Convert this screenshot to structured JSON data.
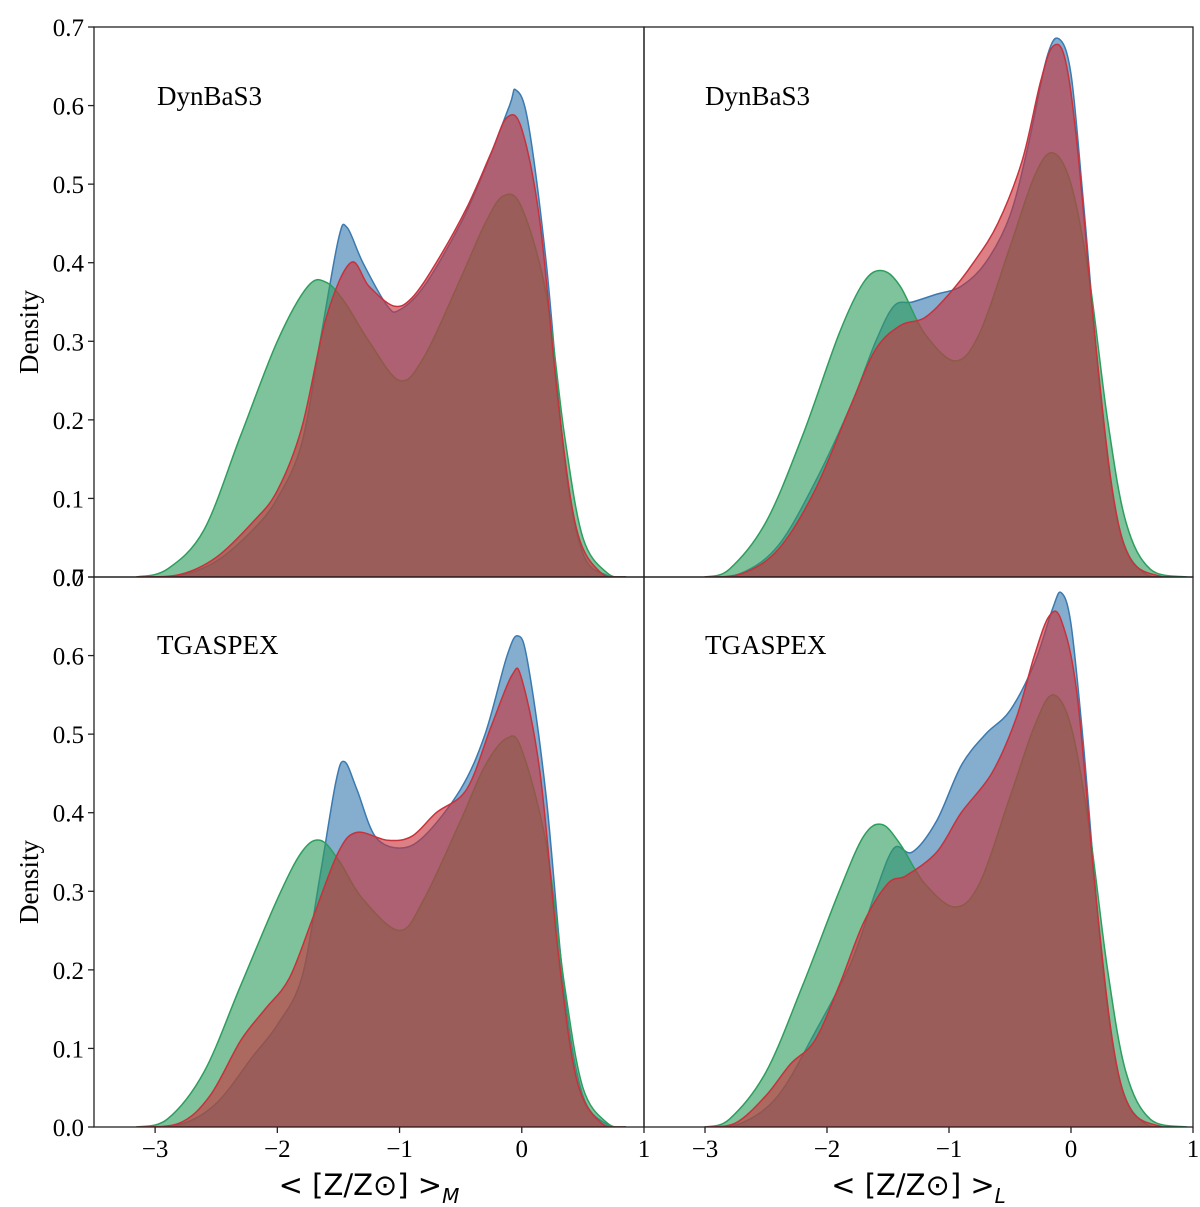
{
  "chart_data": [
    {
      "type": "area",
      "label": "DynBaS3",
      "xlabel": "",
      "ylabel": "Density",
      "xlim": [
        -3.5,
        1
      ],
      "ylim": [
        0,
        0.7
      ],
      "yticks": [
        "0.0",
        "0.1",
        "0.2",
        "0.3",
        "0.4",
        "0.5",
        "0.6",
        "0.7"
      ],
      "xticks": [],
      "series": [
        {
          "color": "#3a7ab0",
          "points": [
            [
              -3.15,
              0
            ],
            [
              -2.8,
              0.002
            ],
            [
              -2.5,
              0.02
            ],
            [
              -2.2,
              0.06
            ],
            [
              -2.0,
              0.1
            ],
            [
              -1.8,
              0.17
            ],
            [
              -1.65,
              0.3
            ],
            [
              -1.5,
              0.43
            ],
            [
              -1.43,
              0.445
            ],
            [
              -1.3,
              0.4
            ],
            [
              -1.1,
              0.345
            ],
            [
              -1.0,
              0.34
            ],
            [
              -0.8,
              0.37
            ],
            [
              -0.5,
              0.45
            ],
            [
              -0.3,
              0.52
            ],
            [
              -0.1,
              0.6
            ],
            [
              -0.05,
              0.62
            ],
            [
              0.05,
              0.58
            ],
            [
              0.2,
              0.4
            ],
            [
              0.35,
              0.15
            ],
            [
              0.5,
              0.03
            ],
            [
              0.7,
              0.002
            ],
            [
              0.85,
              0
            ]
          ]
        },
        {
          "color": "#2e9e5e",
          "points": [
            [
              -3.15,
              0
            ],
            [
              -2.9,
              0.01
            ],
            [
              -2.6,
              0.06
            ],
            [
              -2.3,
              0.18
            ],
            [
              -2.0,
              0.3
            ],
            [
              -1.75,
              0.37
            ],
            [
              -1.6,
              0.375
            ],
            [
              -1.45,
              0.35
            ],
            [
              -1.25,
              0.3
            ],
            [
              -1.0,
              0.25
            ],
            [
              -0.8,
              0.28
            ],
            [
              -0.5,
              0.38
            ],
            [
              -0.3,
              0.45
            ],
            [
              -0.15,
              0.485
            ],
            [
              0.0,
              0.47
            ],
            [
              0.2,
              0.36
            ],
            [
              0.35,
              0.18
            ],
            [
              0.5,
              0.05
            ],
            [
              0.7,
              0.005
            ],
            [
              0.85,
              0
            ]
          ]
        },
        {
          "color": "#c8323c",
          "points": [
            [
              -3.15,
              0
            ],
            [
              -2.8,
              0.003
            ],
            [
              -2.5,
              0.025
            ],
            [
              -2.2,
              0.07
            ],
            [
              -2.0,
              0.11
            ],
            [
              -1.8,
              0.19
            ],
            [
              -1.6,
              0.33
            ],
            [
              -1.4,
              0.4
            ],
            [
              -1.25,
              0.37
            ],
            [
              -1.05,
              0.345
            ],
            [
              -0.9,
              0.355
            ],
            [
              -0.7,
              0.4
            ],
            [
              -0.45,
              0.47
            ],
            [
              -0.25,
              0.54
            ],
            [
              -0.12,
              0.585
            ],
            [
              0.0,
              0.57
            ],
            [
              0.15,
              0.45
            ],
            [
              0.3,
              0.22
            ],
            [
              0.45,
              0.06
            ],
            [
              0.65,
              0.005
            ],
            [
              0.85,
              0
            ]
          ]
        }
      ]
    },
    {
      "type": "area",
      "label": "DynBaS3",
      "xlabel": "",
      "ylabel": "",
      "xlim": [
        -3.5,
        1
      ],
      "ylim": [
        0,
        0.7
      ],
      "yticks": [],
      "xticks": [],
      "series": [
        {
          "color": "#3a7ab0",
          "points": [
            [
              -3.0,
              0
            ],
            [
              -2.7,
              0.005
            ],
            [
              -2.4,
              0.04
            ],
            [
              -2.1,
              0.12
            ],
            [
              -1.8,
              0.22
            ],
            [
              -1.6,
              0.3
            ],
            [
              -1.45,
              0.345
            ],
            [
              -1.3,
              0.35
            ],
            [
              -1.1,
              0.36
            ],
            [
              -0.9,
              0.37
            ],
            [
              -0.7,
              0.4
            ],
            [
              -0.5,
              0.46
            ],
            [
              -0.35,
              0.55
            ],
            [
              -0.2,
              0.66
            ],
            [
              -0.1,
              0.685
            ],
            [
              0.0,
              0.64
            ],
            [
              0.1,
              0.48
            ],
            [
              0.25,
              0.22
            ],
            [
              0.4,
              0.06
            ],
            [
              0.6,
              0.005
            ],
            [
              0.9,
              0
            ]
          ]
        },
        {
          "color": "#2e9e5e",
          "points": [
            [
              -3.0,
              0
            ],
            [
              -2.8,
              0.01
            ],
            [
              -2.5,
              0.07
            ],
            [
              -2.2,
              0.18
            ],
            [
              -1.9,
              0.31
            ],
            [
              -1.7,
              0.375
            ],
            [
              -1.55,
              0.39
            ],
            [
              -1.4,
              0.37
            ],
            [
              -1.2,
              0.31
            ],
            [
              -0.95,
              0.275
            ],
            [
              -0.75,
              0.31
            ],
            [
              -0.5,
              0.42
            ],
            [
              -0.3,
              0.51
            ],
            [
              -0.15,
              0.54
            ],
            [
              0.0,
              0.5
            ],
            [
              0.15,
              0.38
            ],
            [
              0.3,
              0.2
            ],
            [
              0.45,
              0.07
            ],
            [
              0.65,
              0.01
            ],
            [
              0.95,
              0
            ]
          ]
        },
        {
          "color": "#c8323c",
          "points": [
            [
              -3.0,
              0
            ],
            [
              -2.7,
              0.004
            ],
            [
              -2.4,
              0.035
            ],
            [
              -2.1,
              0.11
            ],
            [
              -1.8,
              0.22
            ],
            [
              -1.6,
              0.29
            ],
            [
              -1.4,
              0.32
            ],
            [
              -1.2,
              0.33
            ],
            [
              -1.0,
              0.36
            ],
            [
              -0.8,
              0.4
            ],
            [
              -0.6,
              0.45
            ],
            [
              -0.4,
              0.53
            ],
            [
              -0.25,
              0.63
            ],
            [
              -0.15,
              0.675
            ],
            [
              -0.05,
              0.66
            ],
            [
              0.05,
              0.55
            ],
            [
              0.2,
              0.3
            ],
            [
              0.35,
              0.1
            ],
            [
              0.5,
              0.02
            ],
            [
              0.75,
              0
            ]
          ]
        }
      ]
    },
    {
      "type": "area",
      "label": "TGASPEX",
      "xlabel": "< [Z/Z⊙] >M",
      "ylabel": "Density",
      "xlim": [
        -3.5,
        1
      ],
      "ylim": [
        0,
        0.7
      ],
      "yticks": [
        "0.0",
        "0.1",
        "0.2",
        "0.3",
        "0.4",
        "0.5",
        "0.6",
        "0.7"
      ],
      "xticks": [
        "−3",
        "−2",
        "−1",
        "0",
        "1"
      ],
      "series": [
        {
          "color": "#3a7ab0",
          "points": [
            [
              -3.15,
              0
            ],
            [
              -2.8,
              0.003
            ],
            [
              -2.5,
              0.03
            ],
            [
              -2.2,
              0.09
            ],
            [
              -2.0,
              0.13
            ],
            [
              -1.8,
              0.19
            ],
            [
              -1.65,
              0.32
            ],
            [
              -1.52,
              0.44
            ],
            [
              -1.45,
              0.465
            ],
            [
              -1.35,
              0.43
            ],
            [
              -1.2,
              0.37
            ],
            [
              -1.0,
              0.355
            ],
            [
              -0.8,
              0.37
            ],
            [
              -0.5,
              0.43
            ],
            [
              -0.3,
              0.5
            ],
            [
              -0.12,
              0.6
            ],
            [
              -0.03,
              0.625
            ],
            [
              0.05,
              0.59
            ],
            [
              0.2,
              0.42
            ],
            [
              0.35,
              0.17
            ],
            [
              0.5,
              0.04
            ],
            [
              0.7,
              0.003
            ],
            [
              0.85,
              0
            ]
          ]
        },
        {
          "color": "#2e9e5e",
          "points": [
            [
              -3.15,
              0
            ],
            [
              -2.9,
              0.01
            ],
            [
              -2.6,
              0.07
            ],
            [
              -2.3,
              0.18
            ],
            [
              -2.0,
              0.29
            ],
            [
              -1.8,
              0.35
            ],
            [
              -1.65,
              0.365
            ],
            [
              -1.5,
              0.34
            ],
            [
              -1.3,
              0.29
            ],
            [
              -1.0,
              0.25
            ],
            [
              -0.8,
              0.29
            ],
            [
              -0.5,
              0.39
            ],
            [
              -0.3,
              0.46
            ],
            [
              -0.12,
              0.495
            ],
            [
              0.0,
              0.48
            ],
            [
              0.2,
              0.36
            ],
            [
              0.35,
              0.18
            ],
            [
              0.5,
              0.05
            ],
            [
              0.7,
              0.005
            ],
            [
              0.85,
              0
            ]
          ]
        },
        {
          "color": "#c8323c",
          "points": [
            [
              -3.15,
              0
            ],
            [
              -2.8,
              0.005
            ],
            [
              -2.55,
              0.04
            ],
            [
              -2.3,
              0.11
            ],
            [
              -2.1,
              0.15
            ],
            [
              -1.9,
              0.19
            ],
            [
              -1.7,
              0.27
            ],
            [
              -1.5,
              0.35
            ],
            [
              -1.35,
              0.375
            ],
            [
              -1.1,
              0.365
            ],
            [
              -0.9,
              0.37
            ],
            [
              -0.7,
              0.4
            ],
            [
              -0.45,
              0.43
            ],
            [
              -0.25,
              0.51
            ],
            [
              -0.08,
              0.575
            ],
            [
              0.0,
              0.57
            ],
            [
              0.15,
              0.45
            ],
            [
              0.3,
              0.22
            ],
            [
              0.45,
              0.06
            ],
            [
              0.65,
              0.005
            ],
            [
              0.85,
              0
            ]
          ]
        }
      ]
    },
    {
      "type": "area",
      "label": "TGASPEX",
      "xlabel": "< [Z/Z⊙] >L",
      "ylabel": "",
      "xlim": [
        -3.5,
        1
      ],
      "ylim": [
        0,
        0.7
      ],
      "yticks": [],
      "xticks": [
        "−3",
        "−2",
        "−1",
        "0",
        "1"
      ],
      "series": [
        {
          "color": "#3a7ab0",
          "points": [
            [
              -3.0,
              0
            ],
            [
              -2.7,
              0.005
            ],
            [
              -2.4,
              0.04
            ],
            [
              -2.1,
              0.12
            ],
            [
              -1.8,
              0.21
            ],
            [
              -1.6,
              0.3
            ],
            [
              -1.45,
              0.355
            ],
            [
              -1.3,
              0.35
            ],
            [
              -1.1,
              0.39
            ],
            [
              -0.9,
              0.46
            ],
            [
              -0.7,
              0.5
            ],
            [
              -0.5,
              0.53
            ],
            [
              -0.3,
              0.59
            ],
            [
              -0.15,
              0.66
            ],
            [
              -0.08,
              0.68
            ],
            [
              0.0,
              0.64
            ],
            [
              0.1,
              0.49
            ],
            [
              0.25,
              0.22
            ],
            [
              0.4,
              0.06
            ],
            [
              0.6,
              0.005
            ],
            [
              0.9,
              0
            ]
          ]
        },
        {
          "color": "#2e9e5e",
          "points": [
            [
              -3.0,
              0
            ],
            [
              -2.8,
              0.01
            ],
            [
              -2.5,
              0.07
            ],
            [
              -2.2,
              0.18
            ],
            [
              -1.9,
              0.3
            ],
            [
              -1.7,
              0.37
            ],
            [
              -1.55,
              0.385
            ],
            [
              -1.4,
              0.36
            ],
            [
              -1.2,
              0.31
            ],
            [
              -0.95,
              0.28
            ],
            [
              -0.75,
              0.31
            ],
            [
              -0.5,
              0.42
            ],
            [
              -0.3,
              0.51
            ],
            [
              -0.15,
              0.55
            ],
            [
              0.0,
              0.51
            ],
            [
              0.15,
              0.38
            ],
            [
              0.3,
              0.2
            ],
            [
              0.45,
              0.07
            ],
            [
              0.65,
              0.01
            ],
            [
              0.95,
              0
            ]
          ]
        },
        {
          "color": "#c8323c",
          "points": [
            [
              -3.0,
              0
            ],
            [
              -2.75,
              0.005
            ],
            [
              -2.5,
              0.04
            ],
            [
              -2.3,
              0.08
            ],
            [
              -2.1,
              0.11
            ],
            [
              -1.9,
              0.18
            ],
            [
              -1.7,
              0.26
            ],
            [
              -1.5,
              0.31
            ],
            [
              -1.35,
              0.32
            ],
            [
              -1.1,
              0.35
            ],
            [
              -0.9,
              0.4
            ],
            [
              -0.65,
              0.45
            ],
            [
              -0.45,
              0.52
            ],
            [
              -0.3,
              0.6
            ],
            [
              -0.18,
              0.65
            ],
            [
              -0.08,
              0.645
            ],
            [
              0.05,
              0.55
            ],
            [
              0.2,
              0.3
            ],
            [
              0.35,
              0.1
            ],
            [
              0.5,
              0.02
            ],
            [
              0.75,
              0
            ]
          ]
        }
      ]
    }
  ]
}
